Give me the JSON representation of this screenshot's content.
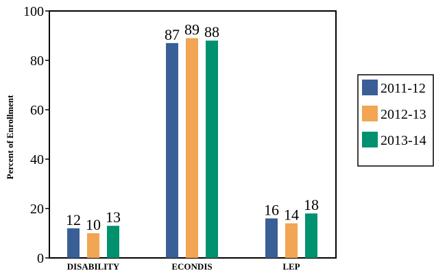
{
  "chart_data": {
    "type": "bar",
    "categories": [
      "DISABILITY",
      "ECONDIS",
      "LEP"
    ],
    "series": [
      {
        "name": "2011-12",
        "values": [
          12,
          87,
          16
        ],
        "color": "#3a5f96"
      },
      {
        "name": "2012-13",
        "values": [
          10,
          89,
          14
        ],
        "color": "#f2a553"
      },
      {
        "name": "2013-14",
        "values": [
          13,
          88,
          18
        ],
        "color": "#00916e"
      }
    ],
    "title": "",
    "xlabel": "",
    "ylabel": "Percent of Enrollment",
    "ylim": [
      0,
      100
    ],
    "yticks": [
      0,
      20,
      40,
      60,
      80,
      100
    ],
    "grid": false,
    "legend_position": "right"
  }
}
